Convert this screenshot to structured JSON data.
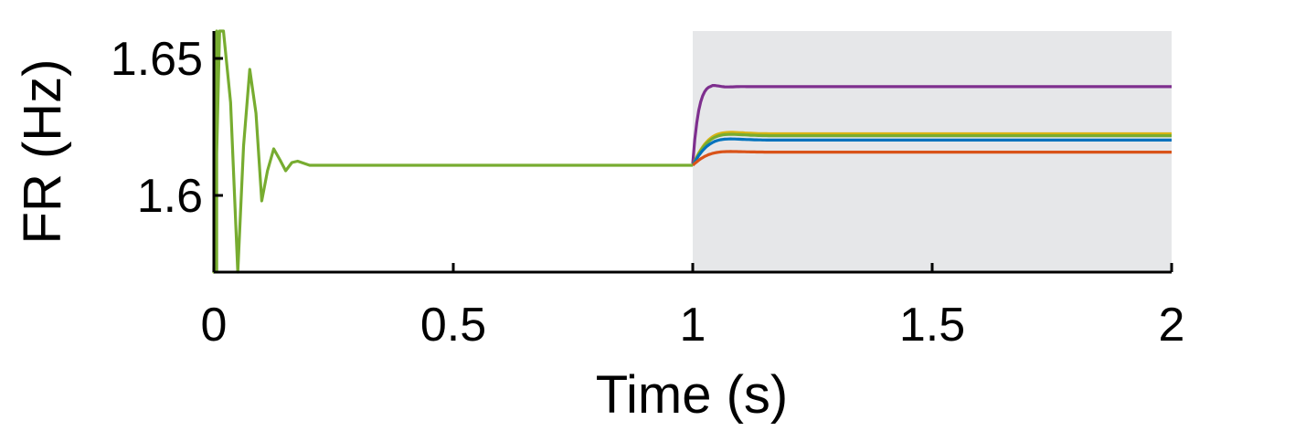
{
  "chart_data": {
    "type": "line",
    "xlabel": "Time (s)",
    "ylabel": "FR (Hz)",
    "xlim": [
      0,
      2
    ],
    "ylim": [
      1.572,
      1.66
    ],
    "x_ticks": [
      0,
      0.5,
      1,
      1.5,
      2
    ],
    "x_tick_labels": [
      "0",
      "0.5",
      "1",
      "1.5",
      "2"
    ],
    "y_ticks": [
      1.6,
      1.65
    ],
    "y_tick_labels": [
      "1.6",
      "1.65"
    ],
    "shaded_region": {
      "x_start": 1,
      "x_end": 2,
      "color": "#e6e7e9"
    },
    "grid": false,
    "series": [
      {
        "color": "#7e2f8e",
        "baseline": 1.611,
        "step_at": 1.0,
        "final": 1.6397,
        "peak": 1.6405,
        "peak_time": 1.025,
        "damping": 0.05
      },
      {
        "color": "#d8b414",
        "baseline": 1.611,
        "step_at": 1.0,
        "final": 1.6225,
        "damping": 0.03
      },
      {
        "color": "#77ac30",
        "baseline": 1.611,
        "step_at": 1.0,
        "final": 1.6218,
        "damping": 0.03
      },
      {
        "color": "#0072bd",
        "baseline": 1.611,
        "step_at": 1.0,
        "final": 1.6202,
        "damping": 0.03
      },
      {
        "color": "#d95319",
        "baseline": 1.611,
        "step_at": 1.0,
        "final": 1.6158,
        "damping": 0.03
      }
    ],
    "transient": {
      "color": "#77ac30",
      "baseline": 1.611,
      "start_value_bottom": 1.572,
      "points": [
        [
          0.0,
          1.572
        ],
        [
          0.012,
          1.66
        ],
        [
          0.02,
          1.66
        ],
        [
          0.035,
          1.634
        ],
        [
          0.05,
          1.572
        ],
        [
          0.062,
          1.618
        ],
        [
          0.075,
          1.646
        ],
        [
          0.088,
          1.63
        ],
        [
          0.1,
          1.598
        ],
        [
          0.112,
          1.609
        ],
        [
          0.125,
          1.617
        ],
        [
          0.138,
          1.613
        ],
        [
          0.15,
          1.609
        ],
        [
          0.163,
          1.612
        ],
        [
          0.175,
          1.6125
        ],
        [
          0.2,
          1.611
        ],
        [
          0.22,
          1.611
        ]
      ]
    }
  }
}
